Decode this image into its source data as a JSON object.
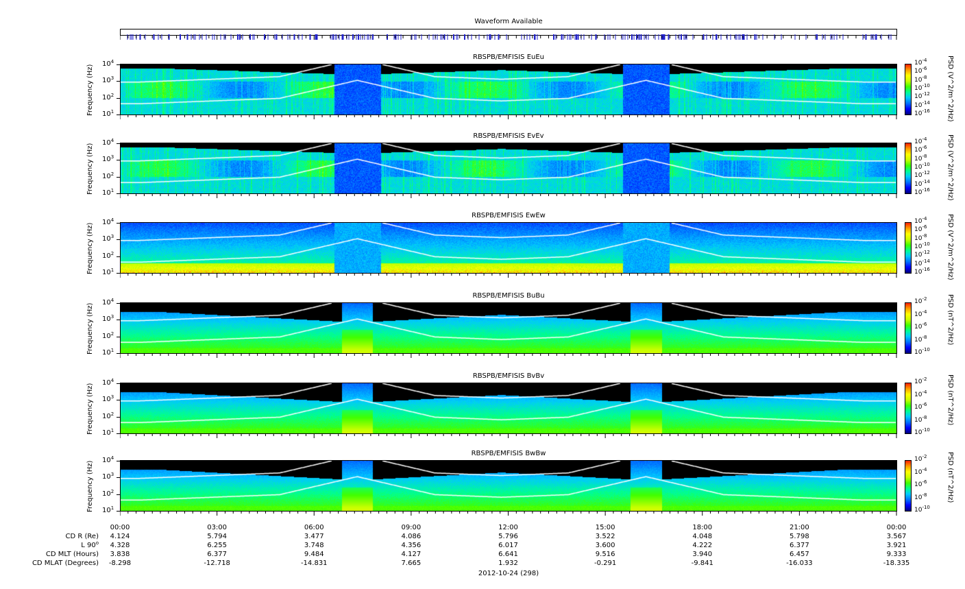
{
  "waveform_title": "Waveform Available",
  "date_label": "2012-10-24 (298)",
  "ephem_labels": [
    "CD R (Re)",
    "L 90",
    "CD MLT (Hours)",
    "CD MLAT (Degrees)"
  ],
  "ephem_sup": "o",
  "colors": {
    "wave_tick": "#2222cc",
    "curve": "#ffffff",
    "background": "#ffffff"
  },
  "chart_data": {
    "type": "heatmap",
    "xlabel": "",
    "ylabel": "Frequency (Hz)",
    "x_ticks": [
      "00:00",
      "03:00",
      "06:00",
      "09:00",
      "12:00",
      "15:00",
      "18:00",
      "21:00",
      "00:00"
    ],
    "y_ticks": [
      "10^1",
      "10^2",
      "10^3",
      "10^4"
    ],
    "ylim": [
      10,
      10000
    ],
    "yscale": "log",
    "ephemeris": {
      "CD R (Re)": [
        "4.124",
        "5.794",
        "3.477",
        "4.086",
        "5.796",
        "3.522",
        "4.048",
        "5.798",
        "3.567"
      ],
      "L 90": [
        "4.328",
        "6.255",
        "3.748",
        "4.356",
        "6.017",
        "3.600",
        "4.222",
        "6.377",
        "3.921"
      ],
      "CD MLT (Hours)": [
        "3.838",
        "6.377",
        "9.484",
        "4.127",
        "6.641",
        "9.516",
        "3.940",
        "6.457",
        "9.333"
      ],
      "CD MLAT (Degrees)": [
        "-8.298",
        "-12.718",
        "-14.831",
        "7.665",
        "1.932",
        "-0.291",
        "-9.841",
        "-16.033",
        "-18.335"
      ]
    },
    "panels": [
      {
        "title": "RBSPB/EMFISIS  EuEu",
        "colorbar_label": "PSD (V^2/m^2/Hz)",
        "colorbar_ticks": [
          "-4",
          "-6",
          "-8",
          "-10",
          "-12",
          "-14",
          "-16"
        ],
        "kind": "E"
      },
      {
        "title": "RBSPB/EMFISIS  EvEv",
        "colorbar_label": "PSD (V^2/m^2/Hz)",
        "colorbar_ticks": [
          "-4",
          "-6",
          "-8",
          "-10",
          "-12",
          "-14",
          "-16"
        ],
        "kind": "E"
      },
      {
        "title": "RBSPB/EMFISIS  EwEw",
        "colorbar_label": "PSD (V^2/m^2/Hz)",
        "colorbar_ticks": [
          "-4",
          "-6",
          "-8",
          "-10",
          "-12",
          "-14",
          "-16"
        ],
        "kind": "Ew"
      },
      {
        "title": "RBSPB/EMFISIS  BuBu",
        "colorbar_label": "PSD (nT^2/Hz)",
        "colorbar_ticks": [
          "-2",
          "-4",
          "-6",
          "-8",
          "-10"
        ],
        "kind": "B"
      },
      {
        "title": "RBSPB/EMFISIS  BvBv",
        "colorbar_label": "PSD (nT^2/Hz)",
        "colorbar_ticks": [
          "-2",
          "-4",
          "-6",
          "-8",
          "-10"
        ],
        "kind": "B"
      },
      {
        "title": "RBSPB/EMFISIS  BwBw",
        "colorbar_label": "PSD (nT^2/Hz)",
        "colorbar_ticks": [
          "-2",
          "-4",
          "-6",
          "-8",
          "-10"
        ],
        "kind": "B"
      }
    ]
  }
}
